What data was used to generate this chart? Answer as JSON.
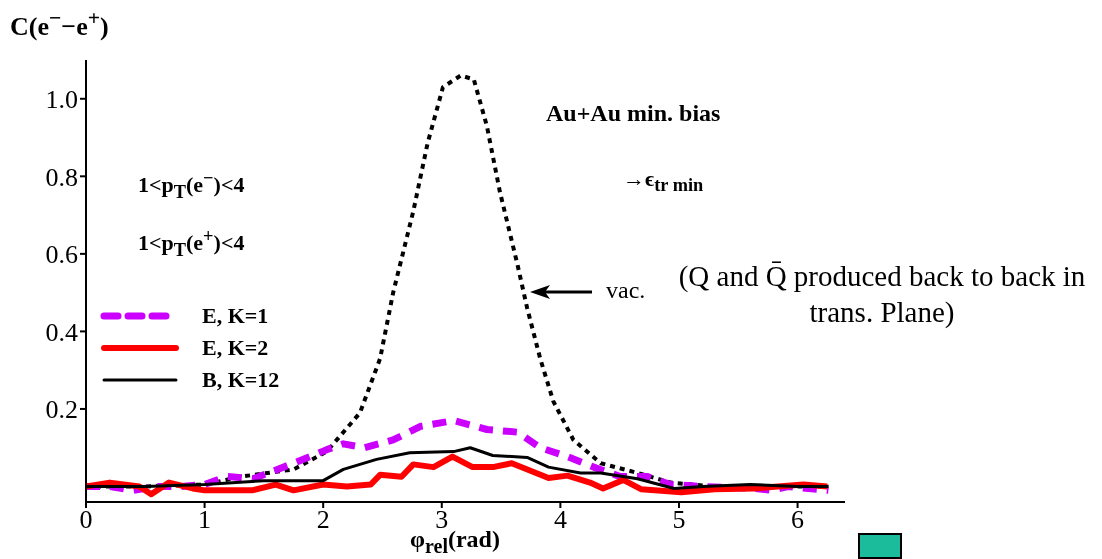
{
  "chart_data": {
    "type": "line",
    "ylabel": "C(e$^{−}$−e$^{+}$)",
    "xlabel": "φ$_{rel}$(rad)",
    "xlim": [
      0,
      6.4
    ],
    "xticks": [
      0,
      1,
      2,
      3,
      4,
      5,
      6
    ],
    "ylim": [
      -0.04,
      1.1
    ],
    "yticks": [
      0.2,
      0.4,
      0.6,
      {
        "value": 0.8,
        "label": "0.8"
      },
      {
        "value": 1,
        "label": "1.0"
      }
    ],
    "grid": false,
    "legend": "left",
    "marker": "none",
    "series": [
      {
        "color": "#000000",
        "line_style": "dotted",
        "x": [
          0,
          0.5,
          1,
          1.32,
          1.75,
          2.03,
          2.31,
          2.48,
          2.59,
          2.76,
          2.88,
          3.01,
          3.16,
          3.27,
          3.38,
          3.49,
          3.64,
          3.72,
          3.83,
          3.94,
          4.11,
          4.34,
          4.65,
          4.93,
          5.3,
          5.8,
          6.26
        ],
        "values": [
          0,
          0,
          0.005,
          0.026,
          0.044,
          0.09,
          0.19,
          0.33,
          0.5,
          0.71,
          0.885,
          1.03,
          1.06,
          1.05,
          0.93,
          0.76,
          0.57,
          0.46,
          0.33,
          0.22,
          0.12,
          0.06,
          0.035,
          0.01,
          0,
          0,
          0
        ]
      },
      {
        "name": "E, K=1",
        "color": "#cc00ff",
        "line_style": "dashed",
        "x": [
          0,
          0.2,
          0.4,
          0.6,
          0.8,
          1,
          1.19,
          1.41,
          1.75,
          2.03,
          2.17,
          2.35,
          2.59,
          2.82,
          3.1,
          3.38,
          3.64,
          3.83,
          4.06,
          4.28,
          4.5,
          4.73,
          4.93,
          5.2,
          5.63,
          5.78,
          5.92,
          6.26
        ],
        "values": [
          0,
          0,
          -0.01,
          0,
          0,
          0.005,
          0.026,
          0.02,
          0.06,
          0.095,
          0.11,
          0.1,
          0.12,
          0.155,
          0.17,
          0.147,
          0.14,
          0.1,
          0.077,
          0.05,
          0.026,
          0.026,
          0.005,
          0,
          -0.005,
          -0.01,
          0,
          -0.01
        ]
      },
      {
        "name": "E, K=2",
        "color": "#ff0000",
        "line_style": "solid",
        "x": [
          0,
          0.2,
          0.45,
          0.55,
          0.7,
          0.9,
          1.0,
          1.4,
          1.6,
          1.75,
          2.0,
          2.2,
          2.4,
          2.48,
          2.66,
          2.76,
          2.93,
          3.09,
          3.26,
          3.43,
          3.59,
          3.9,
          4.06,
          4.25,
          4.36,
          4.53,
          4.68,
          5.02,
          5.3,
          5.63,
          6.05,
          6.25
        ],
        "values": [
          0,
          0.01,
          0,
          -0.02,
          0.01,
          -0.005,
          -0.01,
          -0.01,
          0.005,
          -0.01,
          0.005,
          0,
          0.005,
          0.03,
          0.025,
          0.057,
          0.05,
          0.077,
          0.05,
          0.05,
          0.06,
          0.022,
          0.028,
          0.01,
          -0.005,
          0.017,
          -0.007,
          -0.015,
          -0.007,
          -0.005,
          0.005,
          0
        ]
      },
      {
        "name": "B, K=12",
        "color": "#000000",
        "line_style": "solid",
        "x": [
          0,
          0.5,
          1,
          1.5,
          2.0,
          2.17,
          2.45,
          2.73,
          3.1,
          3.24,
          3.43,
          3.72,
          3.9,
          4.17,
          4.34,
          4.65,
          4.96,
          5.2,
          5.6,
          6.0,
          6.26
        ],
        "values": [
          0,
          0,
          0.005,
          0.015,
          0.015,
          0.044,
          0.07,
          0.087,
          0.09,
          0.1,
          0.08,
          0.075,
          0.05,
          0.035,
          0.035,
          0.02,
          -0.005,
          0,
          0.005,
          0,
          0
        ]
      }
    ],
    "annotations": [
      "1<p$_{T}$(e$^{−}$)<4",
      "1<p$_{T}$(e$^{+}$)<4",
      "Au+Au min. bias",
      "→ϵ$_{tr min}$",
      "vac.",
      "(Q and Q̄ produced back to back in trans. Plane)"
    ]
  }
}
